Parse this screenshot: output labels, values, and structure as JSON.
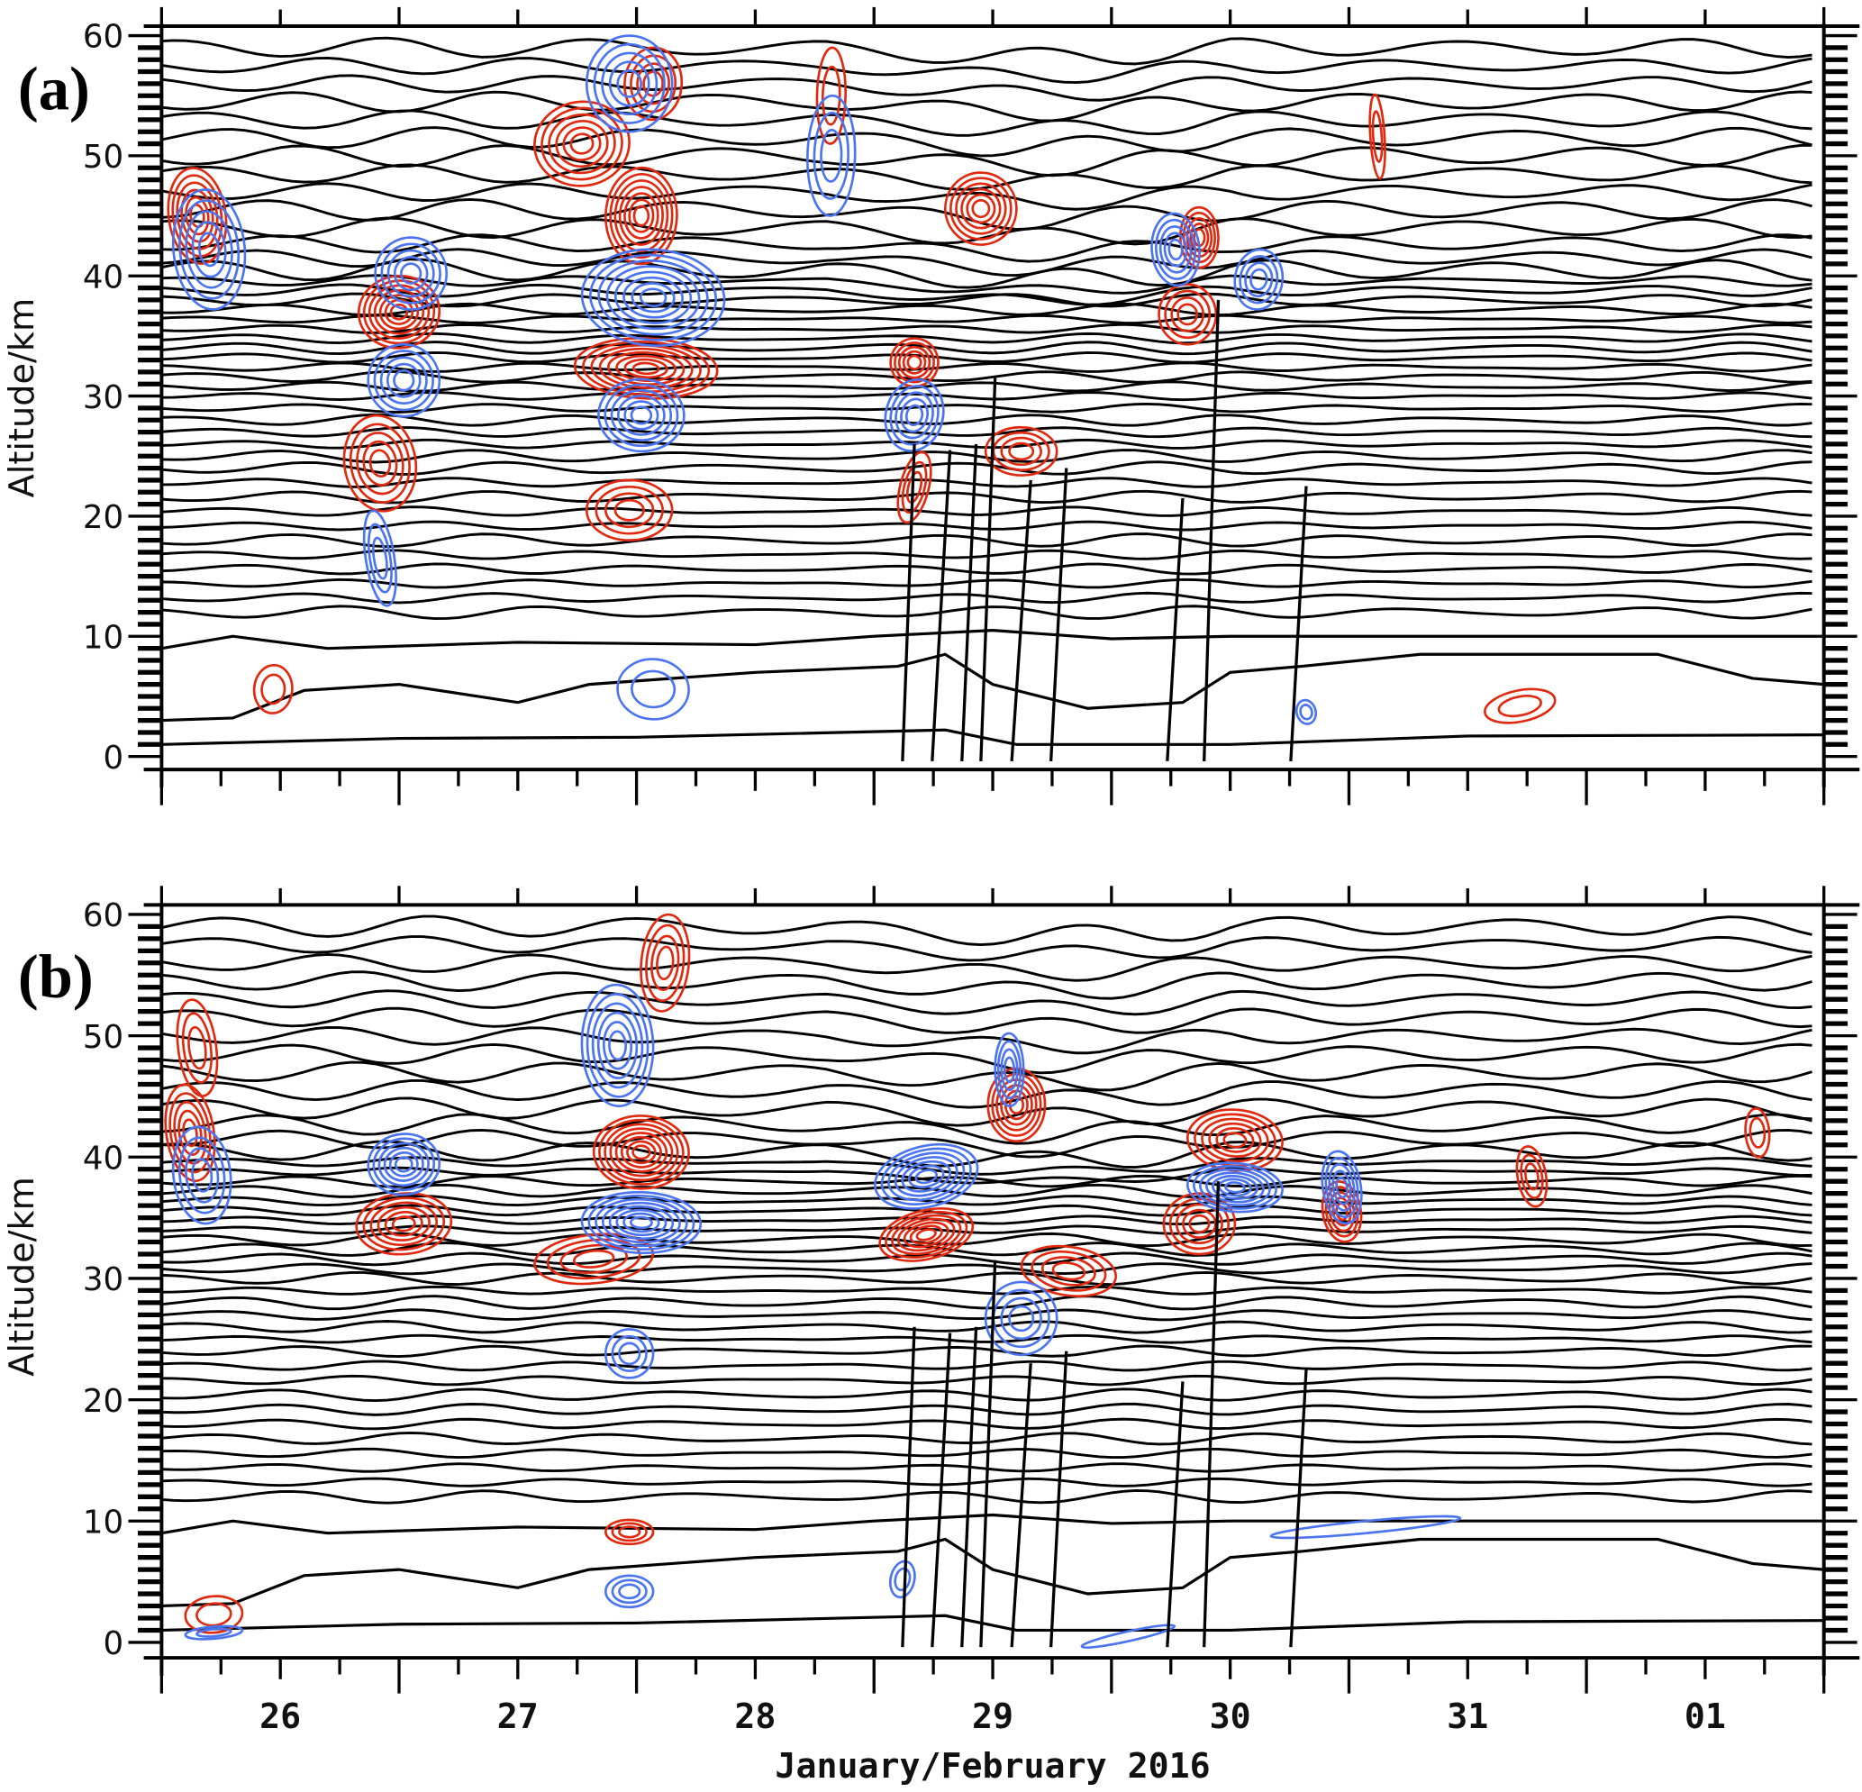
{
  "chart_data": [
    {
      "type": "contour",
      "panel_label": "(a)",
      "ylabel": "Altitude/km",
      "ylim": [
        0,
        60
      ],
      "yticks": [
        "0",
        "10",
        "20",
        "30",
        "40",
        "50",
        "60"
      ],
      "positive_color": "#e0290f",
      "negative_color": "#4a74f0",
      "isentrope_color": "#000000",
      "anomalies": [
        {
          "sign": "+",
          "day": 26.15,
          "alt": 45,
          "w": 0.12,
          "h": 4,
          "n": 6
        },
        {
          "sign": "+",
          "day": 27.0,
          "alt": 37,
          "w": 0.17,
          "h": 3,
          "n": 7
        },
        {
          "sign": "+",
          "day": 26.92,
          "alt": 24.4,
          "w": 0.15,
          "h": 4,
          "n": 5
        },
        {
          "sign": "+",
          "day": 27.77,
          "alt": 51,
          "w": 0.2,
          "h": 3.5,
          "n": 6
        },
        {
          "sign": "+",
          "day": 28.02,
          "alt": 45,
          "w": 0.15,
          "h": 4,
          "n": 7
        },
        {
          "sign": "+",
          "day": 28.04,
          "alt": 32.3,
          "w": 0.3,
          "h": 2.5,
          "n": 8
        },
        {
          "sign": "+",
          "day": 27.97,
          "alt": 20.5,
          "w": 0.18,
          "h": 2.5,
          "n": 4
        },
        {
          "sign": "+",
          "day": 29.17,
          "alt": 32.8,
          "w": 0.1,
          "h": 2,
          "n": 5
        },
        {
          "sign": "+",
          "day": 29.45,
          "alt": 45.6,
          "w": 0.15,
          "h": 3,
          "n": 6
        },
        {
          "sign": "+",
          "day": 29.62,
          "alt": 25.4,
          "w": 0.15,
          "h": 2,
          "n": 4
        },
        {
          "sign": "+",
          "day": 30.37,
          "alt": 43.2,
          "w": 0.08,
          "h": 2.5,
          "n": 5
        },
        {
          "sign": "+",
          "day": 30.32,
          "alt": 36.8,
          "w": 0.12,
          "h": 2.5,
          "n": 4
        },
        {
          "sign": "+",
          "day": 31.12,
          "alt": 51.6,
          "w": 0.03,
          "h": 3.5,
          "n": 2
        },
        {
          "sign": "+",
          "day": 31.72,
          "alt": 4.2,
          "w": 0.15,
          "h": 1.3,
          "n": 2
        },
        {
          "sign": "+",
          "day": 26.47,
          "alt": 5.6,
          "w": 0.08,
          "h": 2,
          "n": 2
        },
        {
          "sign": "+",
          "day": 29.17,
          "alt": 22.4,
          "w": 0.06,
          "h": 3,
          "n": 3
        },
        {
          "sign": "+",
          "day": 28.07,
          "alt": 56,
          "w": 0.12,
          "h": 3,
          "n": 4
        },
        {
          "sign": "+",
          "day": 28.82,
          "alt": 55,
          "w": 0.06,
          "h": 4,
          "n": 2
        },
        {
          "sign": "-",
          "day": 26.2,
          "alt": 42.2,
          "w": 0.15,
          "h": 5,
          "n": 5
        },
        {
          "sign": "-",
          "day": 27.05,
          "alt": 40.2,
          "w": 0.15,
          "h": 3,
          "n": 5
        },
        {
          "sign": "-",
          "day": 27.02,
          "alt": 31.3,
          "w": 0.15,
          "h": 3,
          "n": 5
        },
        {
          "sign": "-",
          "day": 27.97,
          "alt": 56,
          "w": 0.18,
          "h": 4,
          "n": 5
        },
        {
          "sign": "-",
          "day": 28.07,
          "alt": 38.2,
          "w": 0.3,
          "h": 4,
          "n": 8
        },
        {
          "sign": "-",
          "day": 28.02,
          "alt": 28.4,
          "w": 0.18,
          "h": 3,
          "n": 6
        },
        {
          "sign": "-",
          "day": 28.82,
          "alt": 50,
          "w": 0.1,
          "h": 5,
          "n": 3
        },
        {
          "sign": "-",
          "day": 29.17,
          "alt": 28.4,
          "w": 0.12,
          "h": 3,
          "n": 5
        },
        {
          "sign": "-",
          "day": 30.27,
          "alt": 42.2,
          "w": 0.1,
          "h": 3,
          "n": 5
        },
        {
          "sign": "-",
          "day": 30.62,
          "alt": 39.7,
          "w": 0.1,
          "h": 2.5,
          "n": 4
        },
        {
          "sign": "-",
          "day": 26.92,
          "alt": 16.5,
          "w": 0.06,
          "h": 4,
          "n": 3
        },
        {
          "sign": "-",
          "day": 28.07,
          "alt": 5.6,
          "w": 0.15,
          "h": 2.5,
          "n": 2
        },
        {
          "sign": "-",
          "day": 30.82,
          "alt": 3.7,
          "w": 0.04,
          "h": 1,
          "n": 2
        }
      ]
    },
    {
      "type": "contour",
      "panel_label": "(b)",
      "ylabel": "Altitude/km",
      "ylim": [
        0,
        60
      ],
      "yticks": [
        "0",
        "10",
        "20",
        "30",
        "40",
        "50",
        "60"
      ],
      "positive_color": "#e0290f",
      "negative_color": "#4a74f0",
      "isentrope_color": "#000000",
      "anomalies": [
        {
          "sign": "+",
          "day": 26.15,
          "alt": 49,
          "w": 0.08,
          "h": 4,
          "n": 3
        },
        {
          "sign": "+",
          "day": 26.12,
          "alt": 42,
          "w": 0.1,
          "h": 4,
          "n": 5
        },
        {
          "sign": "+",
          "day": 27.02,
          "alt": 34.5,
          "w": 0.2,
          "h": 2.5,
          "n": 6
        },
        {
          "sign": "+",
          "day": 28.02,
          "alt": 40.4,
          "w": 0.2,
          "h": 3,
          "n": 8
        },
        {
          "sign": "+",
          "day": 27.82,
          "alt": 31.6,
          "w": 0.25,
          "h": 2,
          "n": 4
        },
        {
          "sign": "+",
          "day": 28.12,
          "alt": 56,
          "w": 0.1,
          "h": 4,
          "n": 4
        },
        {
          "sign": "+",
          "day": 29.22,
          "alt": 33.6,
          "w": 0.2,
          "h": 2,
          "n": 7
        },
        {
          "sign": "+",
          "day": 29.6,
          "alt": 44.3,
          "w": 0.12,
          "h": 3,
          "n": 6
        },
        {
          "sign": "+",
          "day": 29.82,
          "alt": 30.6,
          "w": 0.2,
          "h": 2,
          "n": 4
        },
        {
          "sign": "+",
          "day": 30.52,
          "alt": 41.4,
          "w": 0.2,
          "h": 2.5,
          "n": 6
        },
        {
          "sign": "+",
          "day": 30.37,
          "alt": 34.5,
          "w": 0.15,
          "h": 2.5,
          "n": 5
        },
        {
          "sign": "+",
          "day": 30.97,
          "alt": 35.5,
          "w": 0.08,
          "h": 2.5,
          "n": 5
        },
        {
          "sign": "+",
          "day": 31.77,
          "alt": 38.4,
          "w": 0.06,
          "h": 2.5,
          "n": 3
        },
        {
          "sign": "+",
          "day": 26.22,
          "alt": 2.3,
          "w": 0.12,
          "h": 1.5,
          "n": 2
        },
        {
          "sign": "+",
          "day": 27.97,
          "alt": 9.1,
          "w": 0.1,
          "h": 1,
          "n": 3
        },
        {
          "sign": "+",
          "day": 32.72,
          "alt": 42,
          "w": 0.05,
          "h": 2,
          "n": 2
        },
        {
          "sign": "-",
          "day": 26.17,
          "alt": 38.5,
          "w": 0.12,
          "h": 4,
          "n": 4
        },
        {
          "sign": "-",
          "day": 27.02,
          "alt": 39.4,
          "w": 0.15,
          "h": 2.5,
          "n": 6
        },
        {
          "sign": "-",
          "day": 27.92,
          "alt": 49.2,
          "w": 0.15,
          "h": 5,
          "n": 6
        },
        {
          "sign": "-",
          "day": 28.02,
          "alt": 34.6,
          "w": 0.25,
          "h": 2.5,
          "n": 8
        },
        {
          "sign": "-",
          "day": 29.22,
          "alt": 38.4,
          "w": 0.22,
          "h": 2.5,
          "n": 7
        },
        {
          "sign": "-",
          "day": 29.57,
          "alt": 47.2,
          "w": 0.06,
          "h": 3,
          "n": 4
        },
        {
          "sign": "-",
          "day": 29.62,
          "alt": 26.7,
          "w": 0.15,
          "h": 3,
          "n": 4
        },
        {
          "sign": "-",
          "day": 30.52,
          "alt": 37.5,
          "w": 0.2,
          "h": 2,
          "n": 7
        },
        {
          "sign": "-",
          "day": 30.97,
          "alt": 37.5,
          "w": 0.08,
          "h": 3,
          "n": 5
        },
        {
          "sign": "-",
          "day": 27.97,
          "alt": 23.8,
          "w": 0.1,
          "h": 2,
          "n": 3
        },
        {
          "sign": "-",
          "day": 27.97,
          "alt": 4.2,
          "w": 0.1,
          "h": 1.3,
          "n": 3
        },
        {
          "sign": "-",
          "day": 29.12,
          "alt": 5.2,
          "w": 0.05,
          "h": 1.5,
          "n": 2
        },
        {
          "sign": "-",
          "day": 30.07,
          "alt": 0.5,
          "w": 0.2,
          "h": 0.4,
          "n": 1
        },
        {
          "sign": "-",
          "day": 31.07,
          "alt": 9.5,
          "w": 0.4,
          "h": 0.5,
          "n": 1
        },
        {
          "sign": "-",
          "day": 26.22,
          "alt": 0.8,
          "w": 0.12,
          "h": 0.5,
          "n": 2
        }
      ]
    }
  ],
  "shared": {
    "xlabel": "January/February 2016",
    "xlim": [
      26,
      33
    ],
    "xtick_labels": [
      {
        "day": 26,
        "label": "26"
      },
      {
        "day": 27,
        "label": "27"
      },
      {
        "day": 28,
        "label": "28"
      },
      {
        "day": 29,
        "label": "29"
      },
      {
        "day": 30,
        "label": "30"
      },
      {
        "day": 31,
        "label": "31"
      },
      {
        "day": 32,
        "label": "01"
      }
    ],
    "isentrope_levels_km": [
      12,
      13.2,
      14.4,
      15.6,
      16.8,
      18,
      19.2,
      20.4,
      21.6,
      22.8,
      24,
      25,
      26,
      27,
      28,
      29,
      30,
      30.8,
      31.6,
      32.4,
      33.2,
      34,
      34.8,
      35.6,
      36.4,
      37.2,
      38,
      38.8,
      39.6,
      40.5,
      41.5,
      42.7,
      44,
      45.5,
      47,
      48.5,
      50,
      51.5,
      53,
      54.5,
      56,
      57.5,
      59
    ],
    "low_isentropes": [
      [
        [
          26,
          1
        ],
        [
          27,
          1.5
        ],
        [
          28,
          1.6
        ],
        [
          29.3,
          2.2
        ],
        [
          29.6,
          1
        ],
        [
          30.5,
          1
        ],
        [
          31.5,
          1.7
        ],
        [
          33,
          1.8
        ]
      ],
      [
        [
          26,
          3
        ],
        [
          26.3,
          3.2
        ],
        [
          26.6,
          5.5
        ],
        [
          27.0,
          6
        ],
        [
          27.5,
          4.5
        ],
        [
          27.8,
          6
        ],
        [
          28.5,
          7
        ],
        [
          29.1,
          7.5
        ],
        [
          29.3,
          8.5
        ],
        [
          29.5,
          6
        ],
        [
          29.9,
          4
        ],
        [
          30.3,
          4.5
        ],
        [
          30.5,
          7
        ],
        [
          30.8,
          7.5
        ],
        [
          31.3,
          8.5
        ],
        [
          32.3,
          8.5
        ],
        [
          32.7,
          6.5
        ],
        [
          33,
          6
        ]
      ],
      [
        [
          26,
          9
        ],
        [
          26.3,
          10
        ],
        [
          26.7,
          9
        ],
        [
          27.5,
          9.5
        ],
        [
          28.5,
          9.3
        ],
        [
          29,
          10
        ],
        [
          29.5,
          10.5
        ],
        [
          30,
          9.8
        ],
        [
          30.5,
          10
        ],
        [
          31,
          10
        ],
        [
          33,
          10
        ]
      ]
    ],
    "vertical_tracks": [
      {
        "bottom_day": 29.12,
        "top_day": 29.17,
        "top_alt": 26
      },
      {
        "bottom_day": 29.245,
        "top_day": 29.32,
        "top_alt": 25.5
      },
      {
        "bottom_day": 29.37,
        "top_day": 29.43,
        "top_alt": 26
      },
      {
        "bottom_day": 29.45,
        "top_day": 29.51,
        "top_alt": 31.5
      },
      {
        "bottom_day": 29.58,
        "top_day": 29.66,
        "top_alt": 23
      },
      {
        "bottom_day": 29.745,
        "top_day": 29.81,
        "top_alt": 24
      },
      {
        "bottom_day": 30.235,
        "top_day": 30.3,
        "top_alt": 21.5
      },
      {
        "bottom_day": 30.39,
        "top_day": 30.45,
        "top_alt": 38
      },
      {
        "bottom_day": 30.755,
        "top_day": 30.82,
        "top_alt": 22.5
      }
    ]
  }
}
